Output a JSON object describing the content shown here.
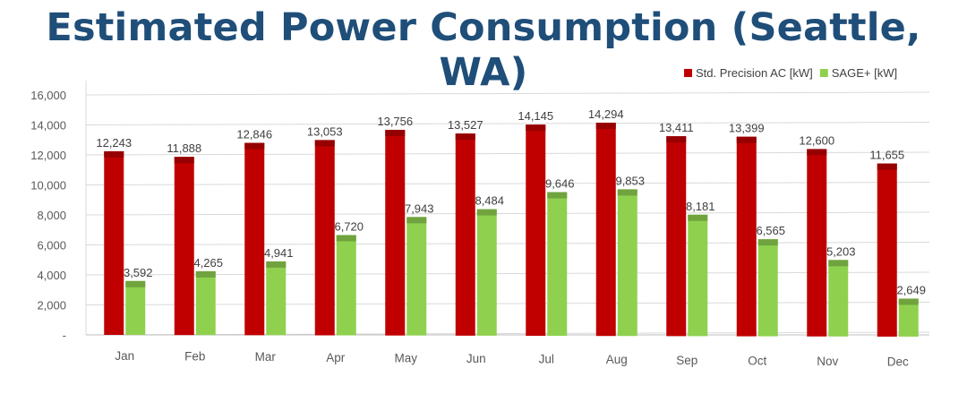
{
  "title": "Estimated Power Consumption (Seattle, WA)",
  "chart_data": {
    "type": "bar",
    "title": "Estimated Power Consumption (Seattle, WA)",
    "categories": [
      "Jan",
      "Feb",
      "Mar",
      "Apr",
      "May",
      "Jun",
      "Jul",
      "Aug",
      "Sep",
      "Oct",
      "Nov",
      "Dec"
    ],
    "series": [
      {
        "name": "Std. Precision AC [kW]",
        "color": "#c00000",
        "values": [
          12243,
          11888,
          12846,
          13053,
          13756,
          13527,
          14145,
          14294,
          13411,
          13399,
          12600,
          11655
        ],
        "labels": [
          "12,243",
          "11,888",
          "12,846",
          "13,053",
          "13,756",
          "13,527",
          "14,145",
          "14,294",
          "13,411",
          "13,399",
          "12,600",
          "11,655"
        ]
      },
      {
        "name": "SAGE+ [kW]",
        "color": "#8fd14f",
        "values": [
          3592,
          4265,
          4941,
          6720,
          7943,
          8484,
          9646,
          9853,
          8181,
          6565,
          5203,
          2649
        ],
        "labels": [
          "3,592",
          "4,265",
          "4,941",
          "6,720",
          "7,943",
          "8,484",
          "9,646",
          "9,853",
          "8,181",
          "6,565",
          "5,203",
          "2,649"
        ]
      }
    ],
    "yticks": [
      "-",
      "2,000",
      "4,000",
      "6,000",
      "8,000",
      "10,000",
      "12,000",
      "14,000",
      "16,000"
    ],
    "ylim": [
      0,
      16000
    ],
    "grid": true,
    "legend": "top-right"
  }
}
